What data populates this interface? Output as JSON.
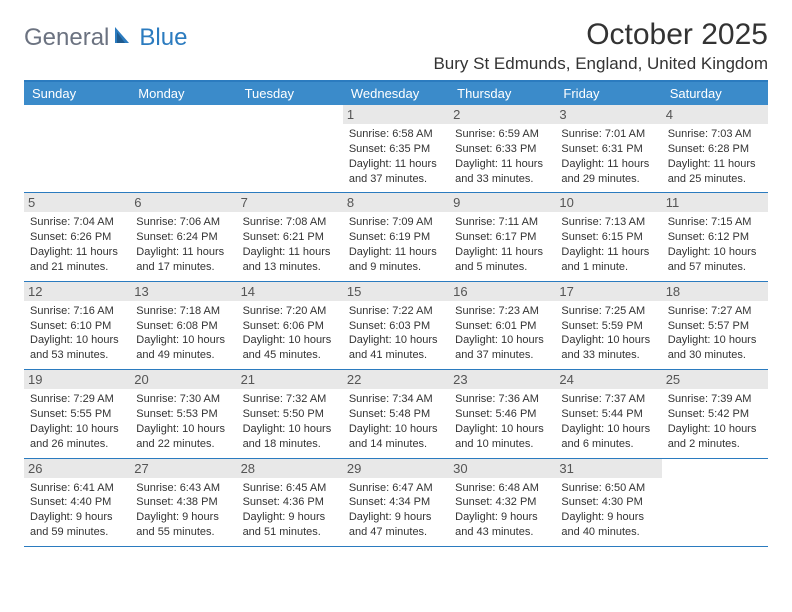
{
  "logo": {
    "text_gray": "General",
    "text_blue": "Blue"
  },
  "title": "October 2025",
  "location": "Bury St Edmunds, England, United Kingdom",
  "colors": {
    "header_bg": "#3b8bca",
    "divider": "#2b7bbf",
    "daynum_bg": "#e8e8e8",
    "text": "#333333",
    "logo_gray": "#6b7280",
    "logo_blue": "#2b7bbf"
  },
  "day_headers": [
    "Sunday",
    "Monday",
    "Tuesday",
    "Wednesday",
    "Thursday",
    "Friday",
    "Saturday"
  ],
  "weeks": [
    [
      null,
      null,
      null,
      {
        "n": "1",
        "sr": "6:58 AM",
        "ss": "6:35 PM",
        "dl": "11 hours and 37 minutes."
      },
      {
        "n": "2",
        "sr": "6:59 AM",
        "ss": "6:33 PM",
        "dl": "11 hours and 33 minutes."
      },
      {
        "n": "3",
        "sr": "7:01 AM",
        "ss": "6:31 PM",
        "dl": "11 hours and 29 minutes."
      },
      {
        "n": "4",
        "sr": "7:03 AM",
        "ss": "6:28 PM",
        "dl": "11 hours and 25 minutes."
      }
    ],
    [
      {
        "n": "5",
        "sr": "7:04 AM",
        "ss": "6:26 PM",
        "dl": "11 hours and 21 minutes."
      },
      {
        "n": "6",
        "sr": "7:06 AM",
        "ss": "6:24 PM",
        "dl": "11 hours and 17 minutes."
      },
      {
        "n": "7",
        "sr": "7:08 AM",
        "ss": "6:21 PM",
        "dl": "11 hours and 13 minutes."
      },
      {
        "n": "8",
        "sr": "7:09 AM",
        "ss": "6:19 PM",
        "dl": "11 hours and 9 minutes."
      },
      {
        "n": "9",
        "sr": "7:11 AM",
        "ss": "6:17 PM",
        "dl": "11 hours and 5 minutes."
      },
      {
        "n": "10",
        "sr": "7:13 AM",
        "ss": "6:15 PM",
        "dl": "11 hours and 1 minute."
      },
      {
        "n": "11",
        "sr": "7:15 AM",
        "ss": "6:12 PM",
        "dl": "10 hours and 57 minutes."
      }
    ],
    [
      {
        "n": "12",
        "sr": "7:16 AM",
        "ss": "6:10 PM",
        "dl": "10 hours and 53 minutes."
      },
      {
        "n": "13",
        "sr": "7:18 AM",
        "ss": "6:08 PM",
        "dl": "10 hours and 49 minutes."
      },
      {
        "n": "14",
        "sr": "7:20 AM",
        "ss": "6:06 PM",
        "dl": "10 hours and 45 minutes."
      },
      {
        "n": "15",
        "sr": "7:22 AM",
        "ss": "6:03 PM",
        "dl": "10 hours and 41 minutes."
      },
      {
        "n": "16",
        "sr": "7:23 AM",
        "ss": "6:01 PM",
        "dl": "10 hours and 37 minutes."
      },
      {
        "n": "17",
        "sr": "7:25 AM",
        "ss": "5:59 PM",
        "dl": "10 hours and 33 minutes."
      },
      {
        "n": "18",
        "sr": "7:27 AM",
        "ss": "5:57 PM",
        "dl": "10 hours and 30 minutes."
      }
    ],
    [
      {
        "n": "19",
        "sr": "7:29 AM",
        "ss": "5:55 PM",
        "dl": "10 hours and 26 minutes."
      },
      {
        "n": "20",
        "sr": "7:30 AM",
        "ss": "5:53 PM",
        "dl": "10 hours and 22 minutes."
      },
      {
        "n": "21",
        "sr": "7:32 AM",
        "ss": "5:50 PM",
        "dl": "10 hours and 18 minutes."
      },
      {
        "n": "22",
        "sr": "7:34 AM",
        "ss": "5:48 PM",
        "dl": "10 hours and 14 minutes."
      },
      {
        "n": "23",
        "sr": "7:36 AM",
        "ss": "5:46 PM",
        "dl": "10 hours and 10 minutes."
      },
      {
        "n": "24",
        "sr": "7:37 AM",
        "ss": "5:44 PM",
        "dl": "10 hours and 6 minutes."
      },
      {
        "n": "25",
        "sr": "7:39 AM",
        "ss": "5:42 PM",
        "dl": "10 hours and 2 minutes."
      }
    ],
    [
      {
        "n": "26",
        "sr": "6:41 AM",
        "ss": "4:40 PM",
        "dl": "9 hours and 59 minutes."
      },
      {
        "n": "27",
        "sr": "6:43 AM",
        "ss": "4:38 PM",
        "dl": "9 hours and 55 minutes."
      },
      {
        "n": "28",
        "sr": "6:45 AM",
        "ss": "4:36 PM",
        "dl": "9 hours and 51 minutes."
      },
      {
        "n": "29",
        "sr": "6:47 AM",
        "ss": "4:34 PM",
        "dl": "9 hours and 47 minutes."
      },
      {
        "n": "30",
        "sr": "6:48 AM",
        "ss": "4:32 PM",
        "dl": "9 hours and 43 minutes."
      },
      {
        "n": "31",
        "sr": "6:50 AM",
        "ss": "4:30 PM",
        "dl": "9 hours and 40 minutes."
      },
      null
    ]
  ],
  "labels": {
    "sunrise": "Sunrise:",
    "sunset": "Sunset:",
    "daylight": "Daylight:"
  }
}
